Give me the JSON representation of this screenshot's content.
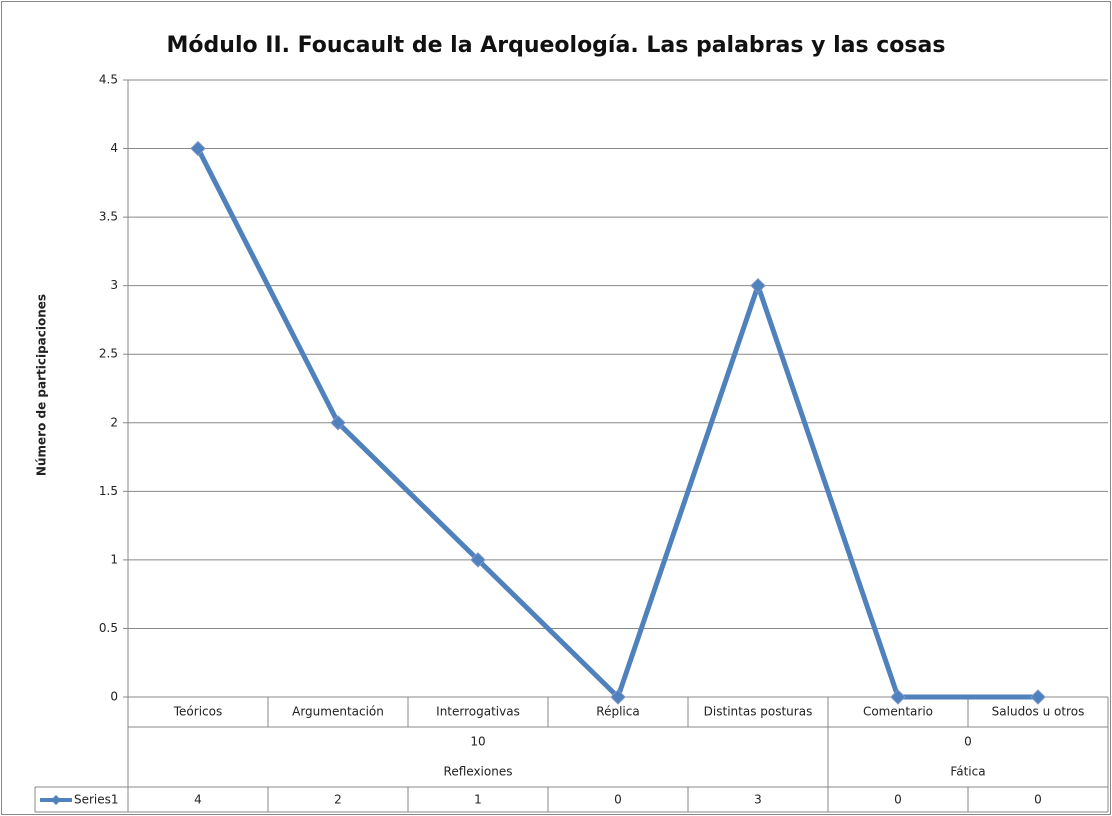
{
  "chart_data": {
    "type": "line",
    "title": "Módulo II. Foucault de la Arqueología. Las palabras y las cosas",
    "y_label": "Número de participaciones",
    "groups": [
      {
        "name": "Reflexiones",
        "total": 10,
        "categories": [
          "Teóricos",
          "Argumentación",
          "Interrogativas",
          "Réplica",
          "Distintas posturas"
        ]
      },
      {
        "name": "Fática",
        "total": 0,
        "categories": [
          "Comentario",
          "Saludos u otros"
        ]
      }
    ],
    "series": [
      {
        "name": "Series1",
        "color": "#4f81bd",
        "values": [
          4,
          2,
          1,
          0,
          3,
          0,
          0
        ]
      }
    ],
    "ylim": [
      0,
      4.5
    ],
    "yticks": [
      0,
      0.5,
      1,
      1.5,
      2,
      2.5,
      3,
      3.5,
      4,
      4.5
    ],
    "grid": true
  }
}
